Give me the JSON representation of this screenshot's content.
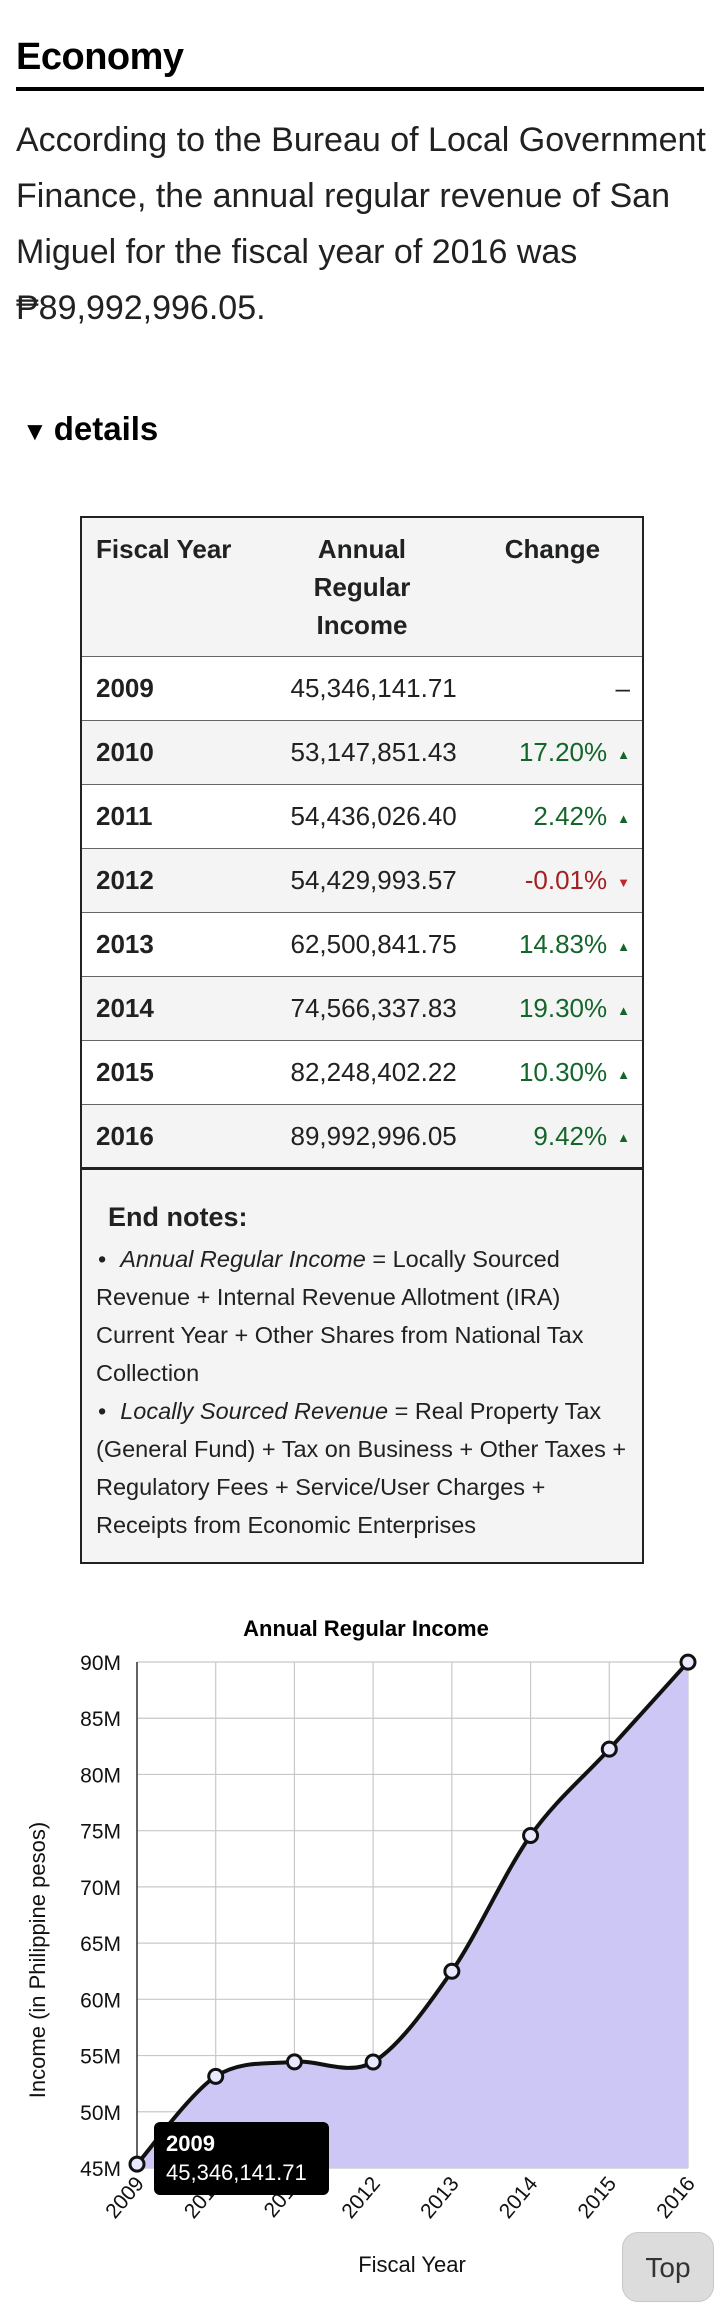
{
  "section": {
    "heading": "Economy",
    "paragraph": "According to the Bureau of Local Government Finance, the annual regular revenue of San Miguel for the fiscal year of 2016 was ₱89,992,996.05.",
    "details_label": "details"
  },
  "table": {
    "headers": [
      "Fiscal Year",
      "Annual Regular Income",
      "Change"
    ],
    "rows": [
      {
        "year": "2009",
        "income": "45,346,141.71",
        "change": "–",
        "trend": "none"
      },
      {
        "year": "2010",
        "income": "53,147,851.43",
        "change": "17.20%",
        "trend": "up"
      },
      {
        "year": "2011",
        "income": "54,436,026.40",
        "change": "2.42%",
        "trend": "up"
      },
      {
        "year": "2012",
        "income": "54,429,993.57",
        "change": "-0.01%",
        "trend": "down"
      },
      {
        "year": "2013",
        "income": "62,500,841.75",
        "change": "14.83%",
        "trend": "up"
      },
      {
        "year": "2014",
        "income": "74,566,337.83",
        "change": "19.30%",
        "trend": "up"
      },
      {
        "year": "2015",
        "income": "82,248,402.22",
        "change": "10.30%",
        "trend": "up"
      },
      {
        "year": "2016",
        "income": "89,992,996.05",
        "change": "9.42%",
        "trend": "up"
      }
    ],
    "end_notes": {
      "title": "End notes:",
      "notes": [
        {
          "term": "Annual Regular Income",
          "definition": " = Locally Sourced Revenue + Internal Revenue Allotment (IRA) Current Year + Other Shares from National Tax Collection"
        },
        {
          "term": "Locally Sourced Revenue",
          "definition": " = Real Property Tax (General Fund) + Tax on Business + Other Taxes + Regulatory Fees + Service/User Charges + Receipts from Economic Enterprises"
        }
      ]
    }
  },
  "colors": {
    "area_fill": "#cdc7f5",
    "line": "#111111",
    "up": "#14652a",
    "down": "#a32020",
    "grid": "#c8c8c8"
  },
  "chart_data": {
    "type": "area",
    "title": "Annual Regular Income",
    "xlabel": "Fiscal Year",
    "ylabel": "Income (in Philippine pesos)",
    "categories": [
      "2009",
      "2010",
      "2011",
      "2012",
      "2013",
      "2014",
      "2015",
      "2016"
    ],
    "series": [
      {
        "values": [
          45346141.71,
          53147851.43,
          54436026.4,
          54429993.57,
          62500841.75,
          74566337.83,
          82248402.22,
          89992996.05
        ]
      }
    ],
    "ylim": [
      45000000,
      90000000
    ],
    "yticks": [
      "45M",
      "50M",
      "55M",
      "60M",
      "65M",
      "70M",
      "75M",
      "80M",
      "85M",
      "90M"
    ],
    "grid": true,
    "legend": "none"
  },
  "tooltip": {
    "year": "2009",
    "value": "45,346,141.71"
  },
  "top_button": {
    "label": "Top"
  }
}
